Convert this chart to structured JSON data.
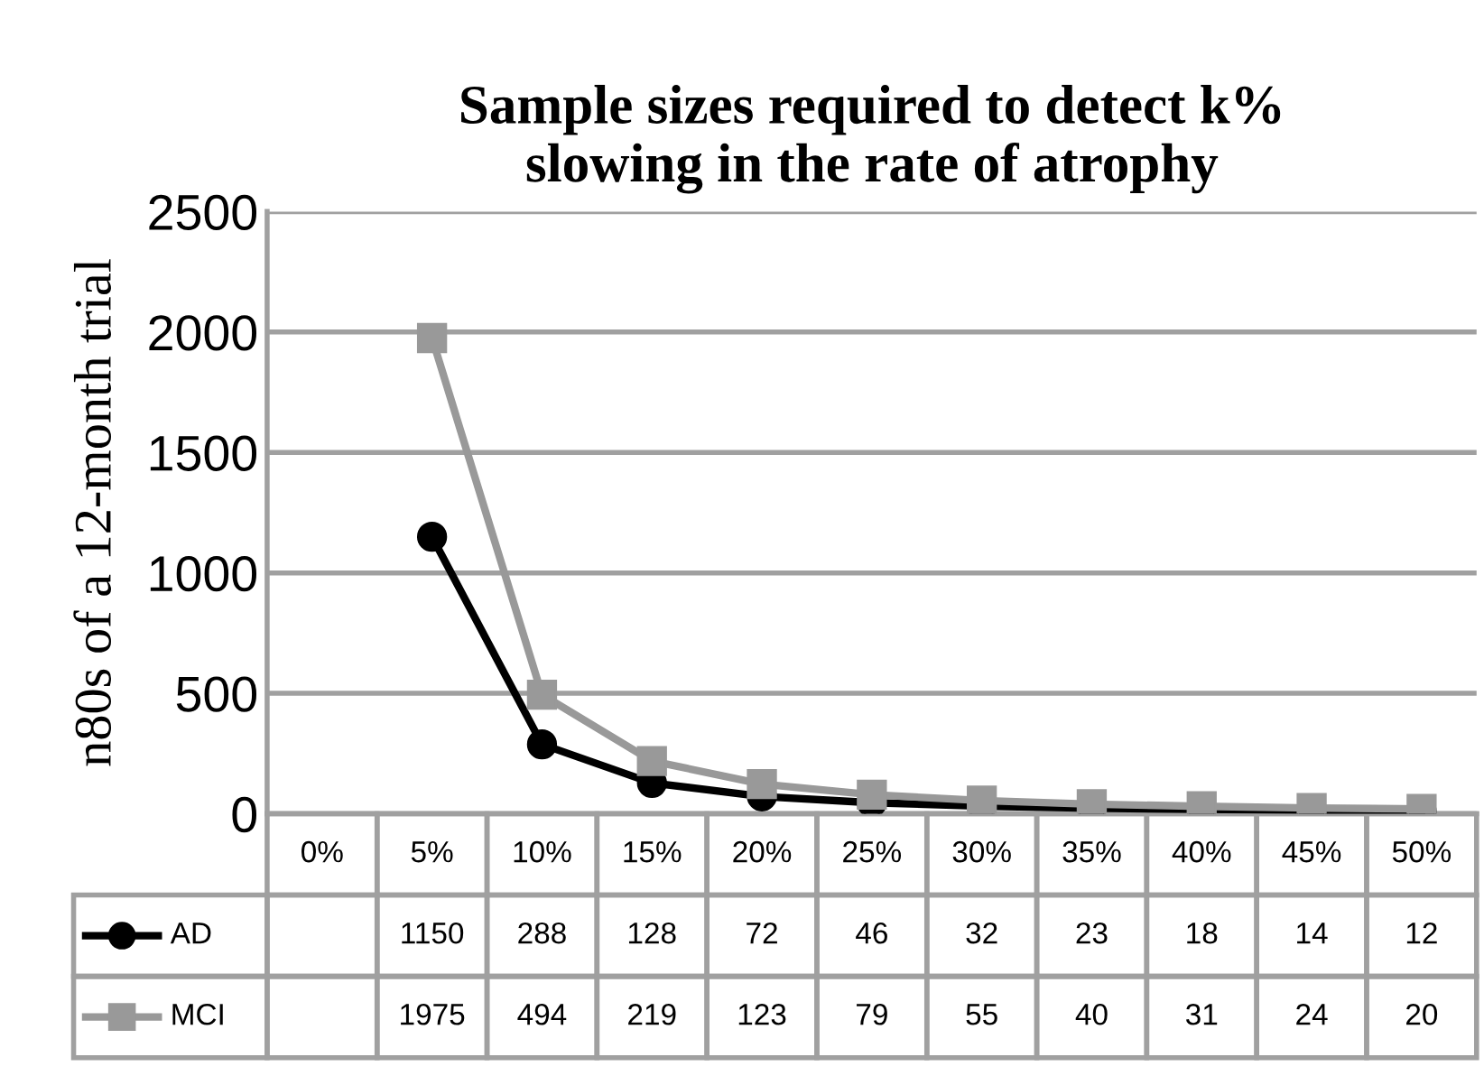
{
  "chart_data": {
    "type": "line",
    "title": "Sample sizes required to detect k%\nslowing in the rate of atrophy",
    "ylabel": "n80s of a 12-month trial",
    "categories": [
      "0%",
      "5%",
      "10%",
      "15%",
      "20%",
      "25%",
      "30%",
      "35%",
      "40%",
      "45%",
      "50%"
    ],
    "series": [
      {
        "name": "AD",
        "color": "#000000",
        "marker": "circle",
        "values": [
          null,
          1150,
          288,
          128,
          72,
          46,
          32,
          23,
          18,
          14,
          12
        ]
      },
      {
        "name": "MCI",
        "color": "#999999",
        "marker": "square",
        "values": [
          null,
          1975,
          494,
          219,
          123,
          79,
          55,
          40,
          31,
          24,
          20
        ]
      }
    ],
    "ylim": [
      0,
      2500
    ],
    "yticks": [
      0,
      500,
      1000,
      1500,
      2000,
      2500
    ],
    "grid": "y",
    "legend": "bottom",
    "data_labels": true,
    "line_style": "solid"
  }
}
